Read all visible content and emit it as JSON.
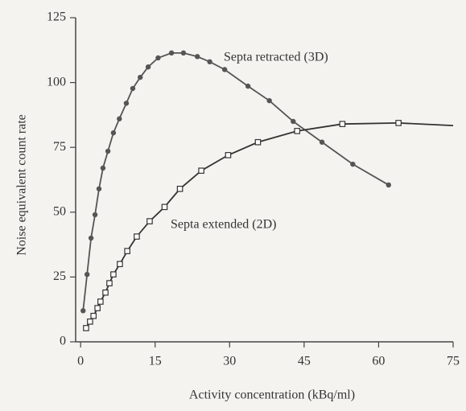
{
  "chart_data": {
    "type": "line",
    "xlabel": "Activity concentration (kBq/ml)",
    "ylabel": "Noise equivalent count rate",
    "xlim": [
      -1,
      75
    ],
    "xticks": [
      0,
      15,
      30,
      45,
      60,
      75
    ],
    "ylim": [
      0,
      125
    ],
    "yticks": [
      0,
      25,
      50,
      75,
      100,
      125
    ],
    "series": [
      {
        "name": "Septa retracted (3D)",
        "color": "#555555",
        "marker": "circle",
        "x": [
          0.5,
          1.3,
          2.1,
          2.9,
          3.7,
          4.5,
          5.5,
          6.6,
          7.8,
          9.2,
          10.5,
          12,
          13.6,
          15.6,
          18.3,
          20.7,
          23.5,
          26,
          29,
          33.7,
          38,
          42.8,
          48.6,
          54.8,
          62
        ],
        "values": [
          12,
          26,
          40,
          49,
          59,
          67,
          73.5,
          80.6,
          86,
          92,
          97.7,
          102,
          106,
          109.5,
          111.4,
          111.4,
          110,
          108,
          105,
          98.6,
          93,
          85,
          77,
          68.5,
          60.5
        ]
      },
      {
        "name": "Septa extended (2D)",
        "color": "#333333",
        "marker": "square",
        "x": [
          1.1,
          1.9,
          2.6,
          3.4,
          4,
          5,
          5.8,
          6.6,
          7.9,
          9.4,
          11.3,
          13.9,
          16.9,
          20,
          24.3,
          29.7,
          35.7,
          43.6,
          52.7,
          64
        ],
        "values": [
          5.3,
          7.8,
          10,
          13,
          15.5,
          19,
          22.6,
          26,
          30,
          35,
          40.6,
          46.5,
          52,
          59,
          66,
          72,
          77,
          81.3,
          84,
          84.4
        ],
        "curve": {
          "x": [
            64,
            75
          ],
          "values": [
            84.4,
            83.4
          ]
        }
      }
    ]
  }
}
